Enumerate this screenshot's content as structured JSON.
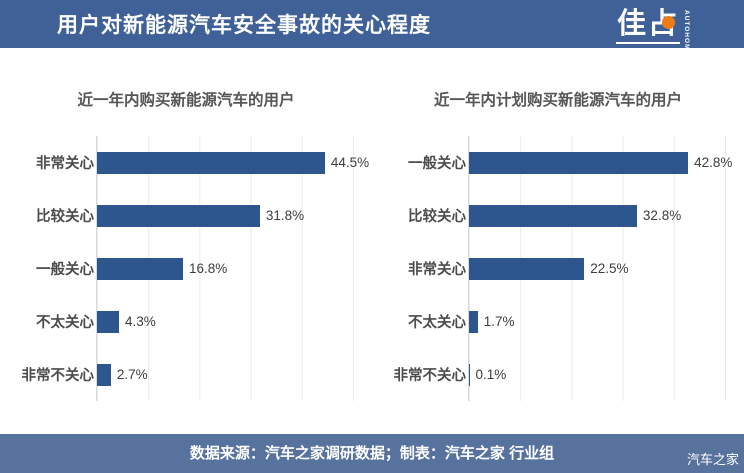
{
  "header": {
    "title": "用户对新能源汽车安全事故的关心程度",
    "logo": {
      "glyphs": "佳占",
      "wordmark": "AUTOHOME"
    }
  },
  "chart_data": [
    {
      "type": "bar",
      "orientation": "horizontal",
      "title": "近一年内购买新能源汽车的用户",
      "categories": [
        "非常关心",
        "比较关心",
        "一般关心",
        "不太关心",
        "非常不关心"
      ],
      "values": [
        44.5,
        31.8,
        16.8,
        4.3,
        2.7
      ],
      "unit": "%",
      "xlim": [
        0,
        50
      ],
      "grid": true,
      "gridline_step": 10,
      "legend": "none"
    },
    {
      "type": "bar",
      "orientation": "horizontal",
      "title": "近一年内计划购买新能源汽车的用户",
      "categories": [
        "一般关心",
        "比较关心",
        "非常关心",
        "不太关心",
        "非常不关心"
      ],
      "values": [
        42.8,
        32.8,
        22.5,
        1.7,
        0.1
      ],
      "unit": "%",
      "xlim": [
        0,
        50
      ],
      "grid": true,
      "gridline_step": 10,
      "legend": "none"
    }
  ],
  "footer": {
    "source_text": "数据来源：汽车之家调研数据；制表：汽车之家 行业组",
    "watermark": "汽车之家"
  },
  "colors": {
    "header_bg": "#3f6197",
    "bar": "#2d568f",
    "footer_bg": "#58729e",
    "logo_dot": "#ee7c15",
    "grid": "#ebebeb",
    "axis": "#d9d9d9",
    "title_text": "#ffffff"
  }
}
